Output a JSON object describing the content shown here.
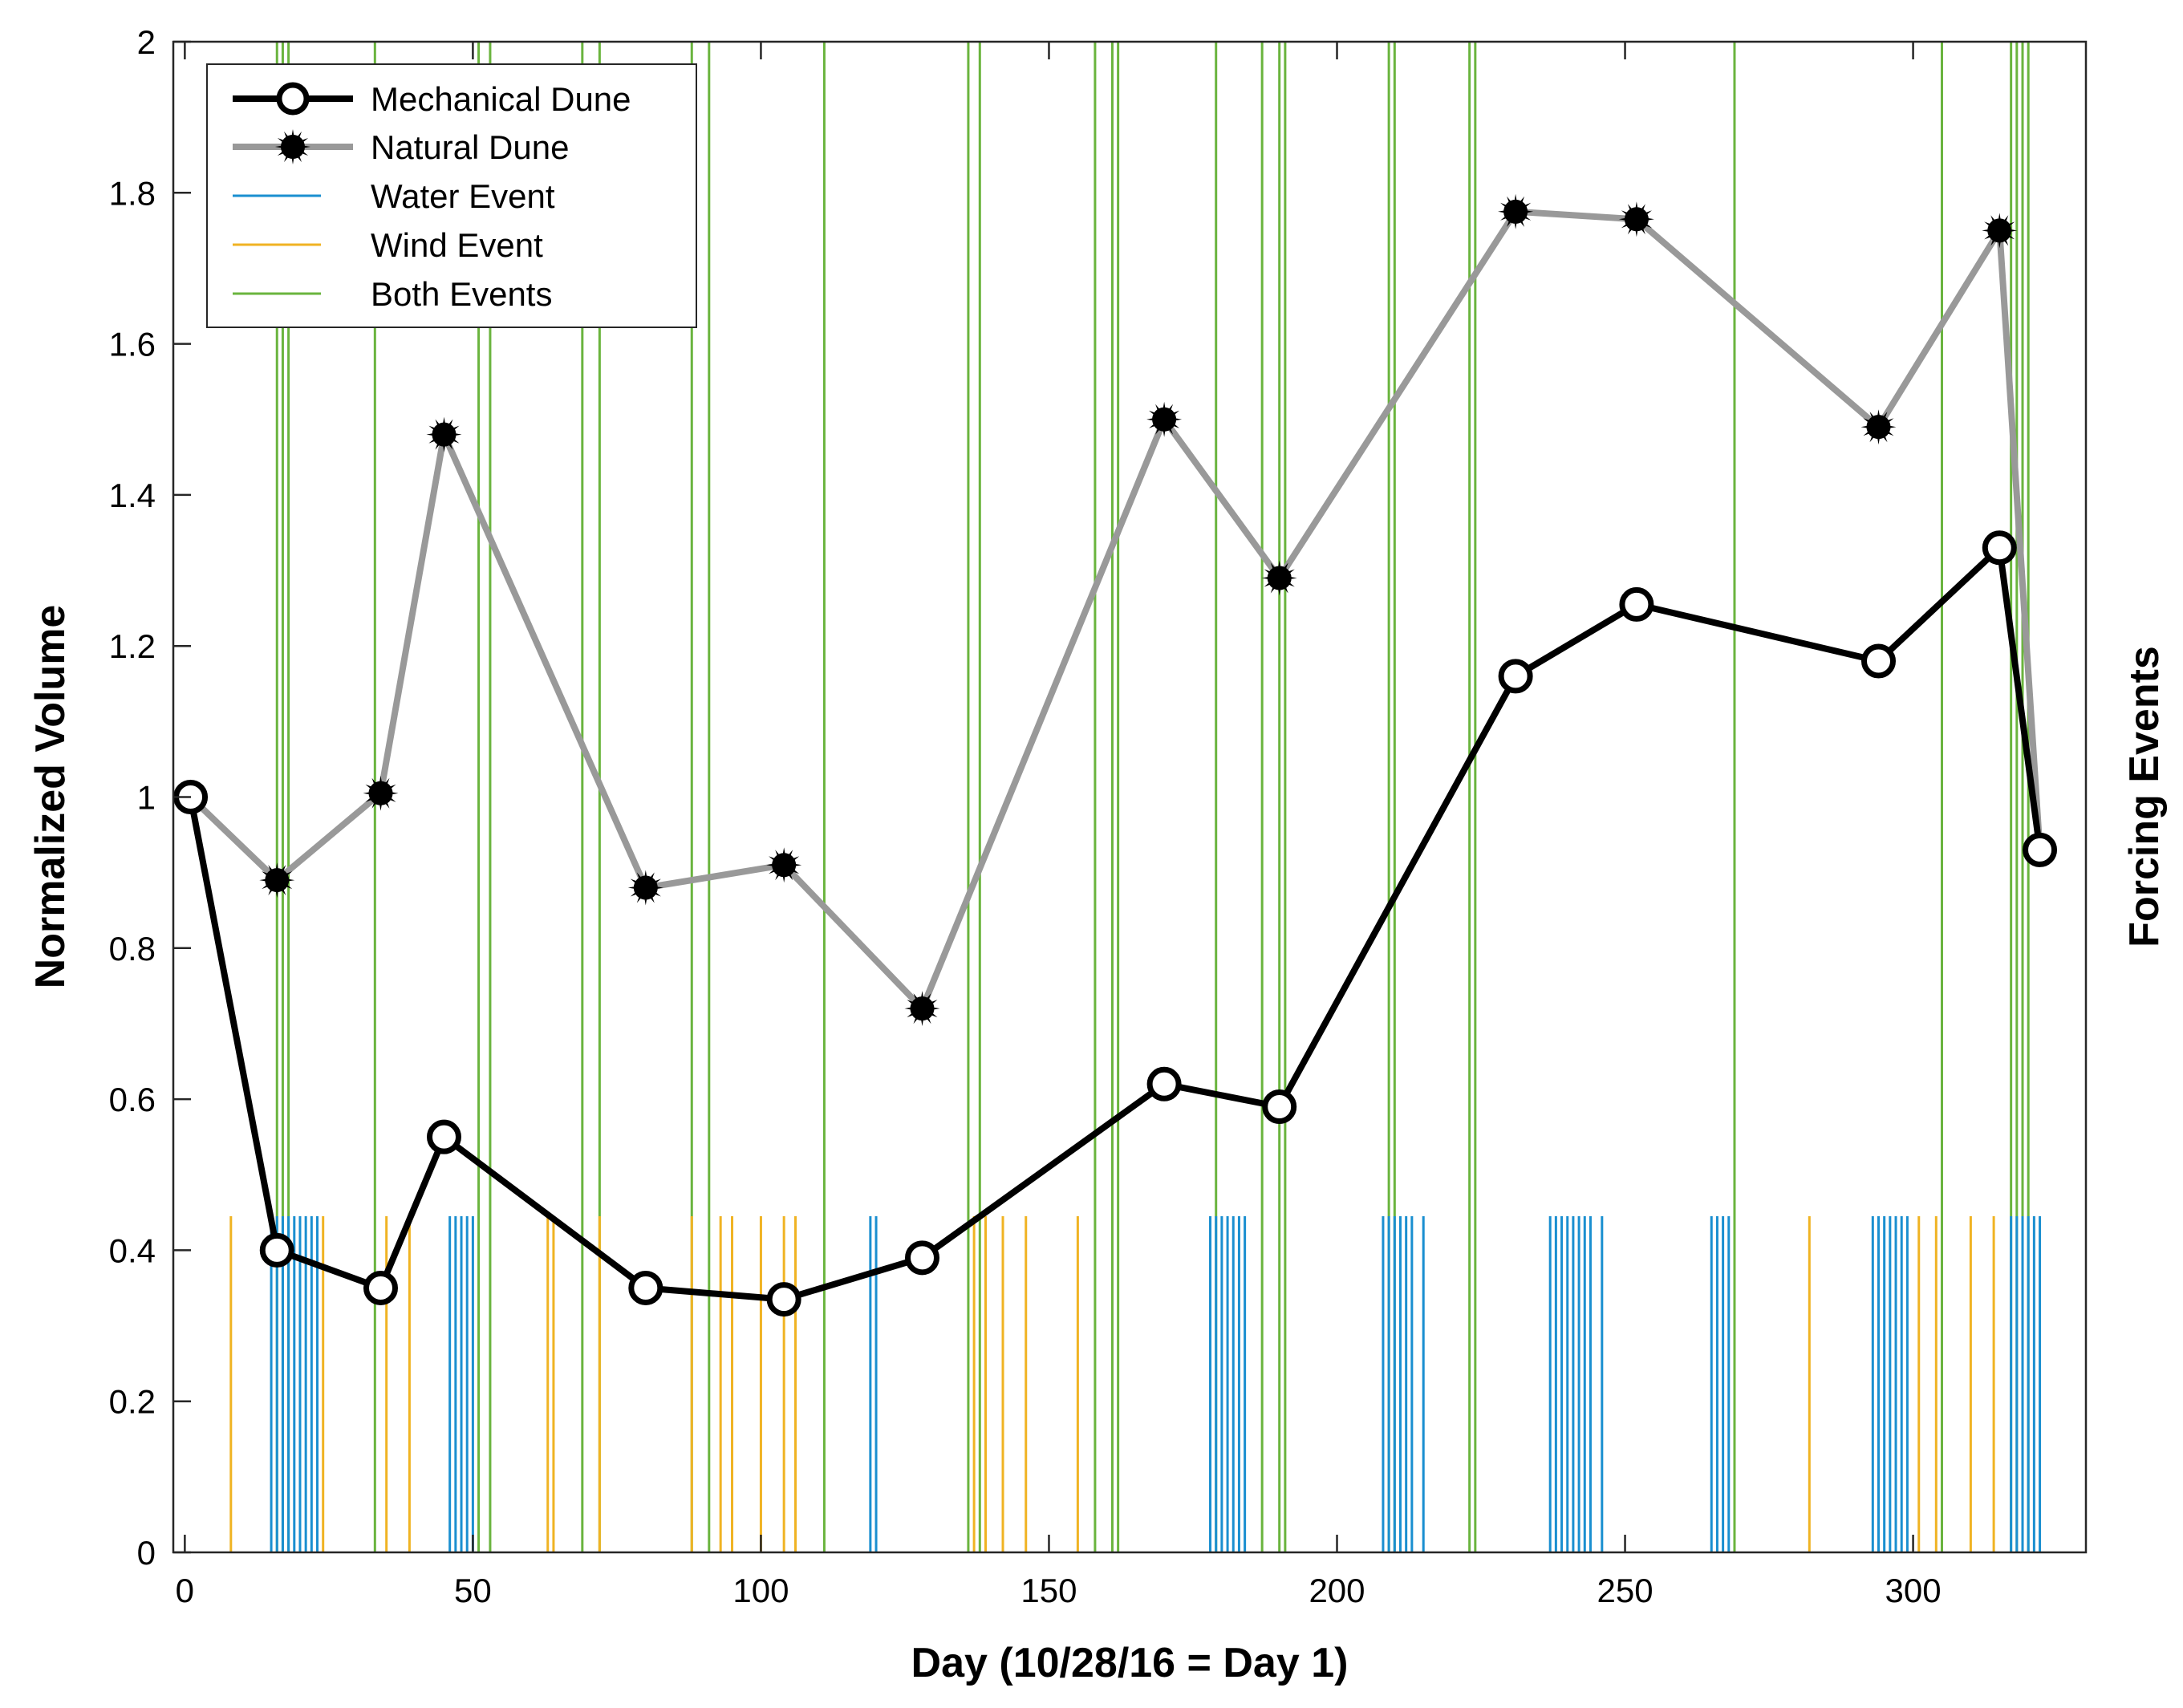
{
  "chart_data": {
    "type": "line",
    "title": "",
    "xlabel": "Day (10/28/16 = Day 1)",
    "ylabel": "Normalized Volume",
    "ylabel_right": "Forcing Events",
    "xlim": [
      -2,
      330
    ],
    "ylim": [
      0,
      2
    ],
    "xticks": [
      0,
      50,
      100,
      150,
      200,
      250,
      300
    ],
    "yticks": [
      0,
      0.2,
      0.4,
      0.6,
      0.8,
      1,
      1.2,
      1.4,
      1.6,
      1.8,
      2
    ],
    "ytick_labels": [
      "0",
      "0.2",
      "0.4",
      "0.6",
      "0.8",
      "1",
      "1.2",
      "1.4",
      "1.6",
      "1.8",
      "2"
    ],
    "grid": false,
    "legend_position": "top-left",
    "series": [
      {
        "name": "Mechanical Dune",
        "color": "#000000",
        "marker": "open-circle",
        "x": [
          1,
          16,
          34,
          45,
          80,
          104,
          128,
          170,
          190,
          231,
          252,
          294,
          315,
          322
        ],
        "values": [
          1.0,
          0.4,
          0.35,
          0.55,
          0.35,
          0.335,
          0.39,
          0.62,
          0.59,
          1.16,
          1.255,
          1.18,
          1.33,
          0.93
        ]
      },
      {
        "name": "Natural Dune",
        "color": "#999999",
        "marker": "filled-star",
        "x": [
          1,
          16,
          34,
          45,
          80,
          104,
          128,
          170,
          190,
          231,
          252,
          294,
          315,
          322
        ],
        "values": [
          1.0,
          0.89,
          1.005,
          1.48,
          0.88,
          0.91,
          0.72,
          1.5,
          1.29,
          1.775,
          1.765,
          1.49,
          1.75,
          0.93
        ]
      }
    ],
    "events": {
      "water": {
        "name": "Water Event",
        "color": "#1a8fd0",
        "height": 0.445,
        "days": [
          15,
          16,
          17,
          18,
          19,
          20,
          21,
          22,
          23,
          46,
          47,
          48,
          49,
          50,
          119,
          120,
          178,
          179,
          180,
          181,
          182,
          183,
          184,
          208,
          209,
          210,
          211,
          212,
          213,
          215,
          237,
          238,
          239,
          240,
          241,
          242,
          243,
          244,
          246,
          265,
          266,
          267,
          268,
          293,
          294,
          295,
          296,
          297,
          298,
          299,
          317,
          318,
          319,
          320,
          321,
          322
        ]
      },
      "wind": {
        "name": "Wind Event",
        "color": "#f0b323",
        "height": 0.445,
        "days": [
          8,
          24,
          35,
          39,
          63,
          64,
          72,
          88,
          93,
          95,
          100,
          104,
          106,
          137,
          139,
          142,
          146,
          155,
          282,
          301,
          304,
          310,
          314
        ]
      },
      "both": {
        "name": "Both Events",
        "color": "#6ab43e",
        "height": 2,
        "days": [
          16,
          17,
          18,
          33,
          51,
          53,
          69,
          72,
          88,
          91,
          111,
          136,
          138,
          158,
          161,
          162,
          179,
          187,
          190,
          191,
          209,
          210,
          223,
          224,
          269,
          305,
          317,
          318,
          319,
          320
        ]
      }
    }
  }
}
